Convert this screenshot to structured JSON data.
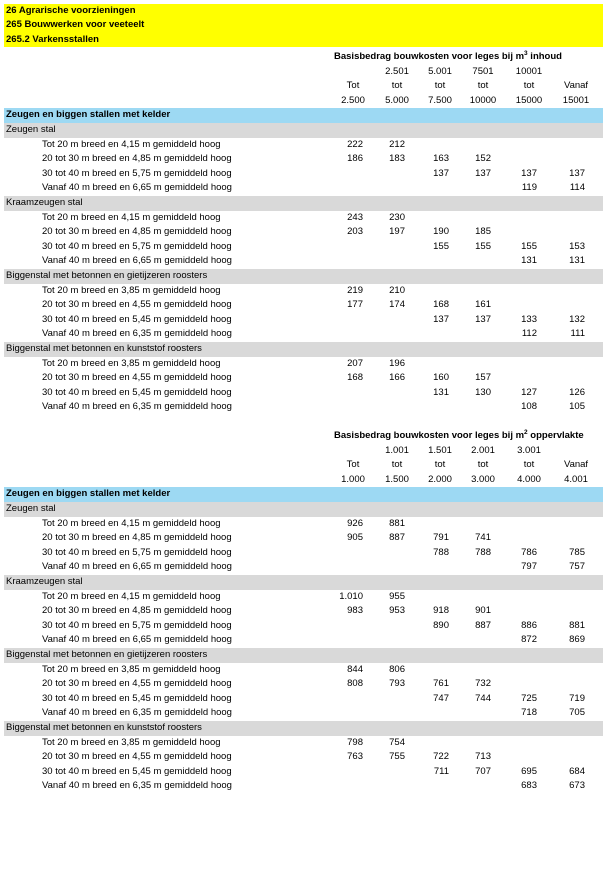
{
  "header": {
    "lines": [
      "26 Agrarische voorzieningen",
      "265 Bouwwerken voor veeteelt",
      "265.2 Varkensstallen"
    ]
  },
  "tables": [
    {
      "title": [
        "Basisbedrag bouwkosten voor leges bij m",
        "3",
        " inhoud"
      ],
      "header_rows": [
        [
          null,
          "2.501",
          "5.001",
          "7501",
          "10001",
          null
        ],
        [
          "Tot",
          "tot",
          "tot",
          "tot",
          "tot",
          "Vanaf"
        ],
        [
          "2.500",
          "5.000",
          "7.500",
          "10000",
          "15000",
          "15001"
        ]
      ],
      "section": "Zeugen en biggen stallen met kelder",
      "groups": [
        {
          "name": "Zeugen stal",
          "rows": [
            {
              "label": "Tot 20 m breed en 4,15 m gemiddeld hoog",
              "values": [
                "222",
                "212",
                null,
                null,
                null,
                null
              ]
            },
            {
              "label": "20 tot 30 m breed en 4,85 m gemiddeld hoog",
              "values": [
                "186",
                "183",
                "163",
                "152",
                null,
                null
              ]
            },
            {
              "label": "30 tot 40 m breed en 5,75 m gemiddeld hoog",
              "values": [
                null,
                null,
                "137",
                "137",
                "137",
                "137"
              ]
            },
            {
              "label": "Vanaf 40 m breed en 6,65 m gemiddeld hoog",
              "values": [
                null,
                null,
                null,
                null,
                "119",
                "114"
              ]
            }
          ]
        },
        {
          "name": "Kraamzeugen stal",
          "rows": [
            {
              "label": "Tot 20 m breed en 4,15 m gemiddeld hoog",
              "values": [
                "243",
                "230",
                null,
                null,
                null,
                null
              ]
            },
            {
              "label": "20 tot 30 m breed en 4,85 m gemiddeld hoog",
              "values": [
                "203",
                "197",
                "190",
                "185",
                null,
                null
              ]
            },
            {
              "label": "30 tot 40 m breed en 5,75 m gemiddeld hoog",
              "values": [
                null,
                null,
                "155",
                "155",
                "155",
                "153"
              ]
            },
            {
              "label": "Vanaf 40 m breed en 6,65 m gemiddeld hoog",
              "values": [
                null,
                null,
                null,
                null,
                "131",
                "131"
              ]
            }
          ]
        },
        {
          "name": "Biggenstal met betonnen en gietijzeren roosters",
          "rows": [
            {
              "label": "Tot 20 m breed en 3,85 m gemiddeld hoog",
              "values": [
                "219",
                "210",
                null,
                null,
                null,
                null
              ]
            },
            {
              "label": "20 tot 30 m breed en 4,55 m gemiddeld hoog",
              "values": [
                "177",
                "174",
                "168",
                "161",
                null,
                null
              ]
            },
            {
              "label": "30 tot 40 m breed en 5,45 m gemiddeld hoog",
              "values": [
                null,
                null,
                "137",
                "137",
                "133",
                "132"
              ]
            },
            {
              "label": "Vanaf 40 m breed en 6,35 m gemiddeld hoog",
              "values": [
                null,
                null,
                null,
                null,
                "112",
                "111"
              ]
            }
          ]
        },
        {
          "name": "Biggenstal met betonnen en kunststof roosters",
          "rows": [
            {
              "label": "Tot 20 m breed en 3,85 m gemiddeld hoog",
              "values": [
                "207",
                "196",
                null,
                null,
                null,
                null
              ]
            },
            {
              "label": "20 tot 30 m breed en 4,55 m gemiddeld hoog",
              "values": [
                "168",
                "166",
                "160",
                "157",
                null,
                null
              ]
            },
            {
              "label": "30 tot 40 m breed en 5,45 m gemiddeld hoog",
              "values": [
                null,
                null,
                "131",
                "130",
                "127",
                "126"
              ]
            },
            {
              "label": "Vanaf 40 m breed en 6,35 m gemiddeld hoog",
              "values": [
                null,
                null,
                null,
                null,
                "108",
                "105"
              ]
            }
          ]
        }
      ]
    },
    {
      "title": [
        "Basisbedrag bouwkosten voor leges bij m",
        "2",
        " oppervlakte"
      ],
      "header_rows": [
        [
          null,
          "1.001",
          "1.501",
          "2.001",
          "3.001",
          null
        ],
        [
          "Tot",
          "tot",
          "tot",
          "tot",
          "tot",
          "Vanaf"
        ],
        [
          "1.000",
          "1.500",
          "2.000",
          "3.000",
          "4.000",
          "4.001"
        ]
      ],
      "section": "Zeugen en biggen stallen met kelder",
      "groups": [
        {
          "name": "Zeugen stal",
          "rows": [
            {
              "label": "Tot 20 m breed en 4,15 m gemiddeld hoog",
              "values": [
                "926",
                "881",
                null,
                null,
                null,
                null
              ]
            },
            {
              "label": "20 tot 30 m breed en 4,85 m gemiddeld hoog",
              "values": [
                "905",
                "887",
                "791",
                "741",
                null,
                null
              ]
            },
            {
              "label": "30 tot 40 m breed en 5,75 m gemiddeld hoog",
              "values": [
                null,
                null,
                "788",
                "788",
                "786",
                "785"
              ]
            },
            {
              "label": "Vanaf 40 m breed en 6,65 m gemiddeld hoog",
              "values": [
                null,
                null,
                null,
                null,
                "797",
                "757"
              ]
            }
          ]
        },
        {
          "name": "Kraamzeugen stal",
          "rows": [
            {
              "label": "Tot 20 m breed en 4,15 m gemiddeld hoog",
              "values": [
                "1.010",
                "955",
                null,
                null,
                null,
                null
              ]
            },
            {
              "label": "20 tot 30 m breed en 4,85 m gemiddeld hoog",
              "values": [
                "983",
                "953",
                "918",
                "901",
                null,
                null
              ]
            },
            {
              "label": "30 tot 40 m breed en 5,75 m gemiddeld hoog",
              "values": [
                null,
                null,
                "890",
                "887",
                "886",
                "881"
              ]
            },
            {
              "label": "Vanaf 40 m breed en 6,65 m gemiddeld hoog",
              "values": [
                null,
                null,
                null,
                null,
                "872",
                "869"
              ]
            }
          ]
        },
        {
          "name": "Biggenstal met betonnen en gietijzeren roosters",
          "rows": [
            {
              "label": "Tot 20 m breed en 3,85 m gemiddeld hoog",
              "values": [
                "844",
                "806",
                null,
                null,
                null,
                null
              ]
            },
            {
              "label": "20 tot 30 m breed en 4,55 m gemiddeld hoog",
              "values": [
                "808",
                "793",
                "761",
                "732",
                null,
                null
              ]
            },
            {
              "label": "30 tot 40 m breed en 5,45 m gemiddeld hoog",
              "values": [
                null,
                null,
                "747",
                "744",
                "725",
                "719"
              ]
            },
            {
              "label": "Vanaf 40 m breed en 6,35 m gemiddeld hoog",
              "values": [
                null,
                null,
                null,
                null,
                "718",
                "705"
              ]
            }
          ]
        },
        {
          "name": "Biggenstal met betonnen en kunststof roosters",
          "rows": [
            {
              "label": "Tot 20 m breed en 3,85 m gemiddeld hoog",
              "values": [
                "798",
                "754",
                null,
                null,
                null,
                null
              ]
            },
            {
              "label": "20 tot 30 m breed en 4,55 m gemiddeld hoog",
              "values": [
                "763",
                "755",
                "722",
                "713",
                null,
                null
              ]
            },
            {
              "label": "30 tot 40 m breed en 5,45 m gemiddeld hoog",
              "values": [
                null,
                null,
                "711",
                "707",
                "695",
                "684"
              ]
            },
            {
              "label": "Vanaf 40 m breed en 6,35 m gemiddeld hoog",
              "values": [
                null,
                null,
                null,
                null,
                "683",
                "673"
              ]
            }
          ]
        }
      ]
    }
  ]
}
